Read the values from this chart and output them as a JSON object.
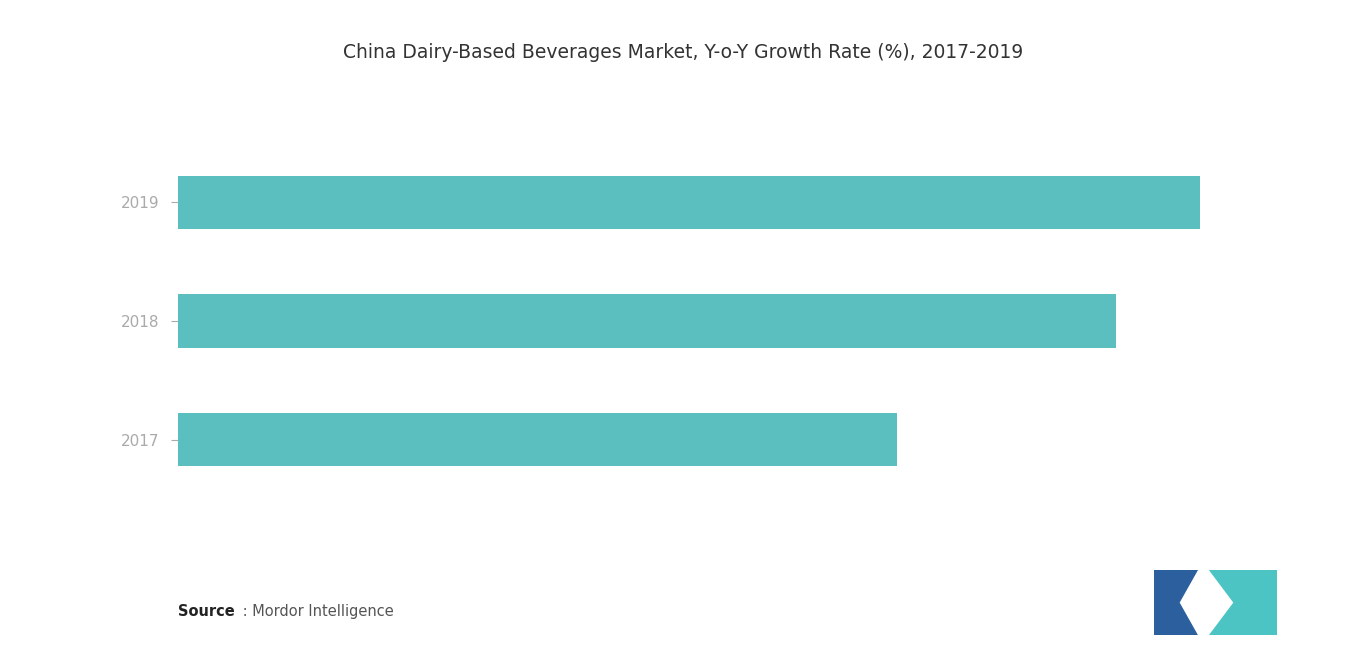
{
  "title": "China Dairy-Based Beverages Market, Y-o-Y Growth Rate (%), 2017-2019",
  "years": [
    "2017",
    "2018",
    "2019"
  ],
  "values": [
    6.9,
    9.0,
    9.8
  ],
  "bar_color": "#5BBFBF",
  "background_color": "#ffffff",
  "title_fontsize": 13.5,
  "tick_fontsize": 11,
  "source_bold": "Source",
  "source_rest": " : Mordor Intelligence",
  "xlim": [
    0,
    11
  ],
  "bar_height": 0.45,
  "logo_blue": "#2B5F9E",
  "logo_teal": "#4DC4C4"
}
